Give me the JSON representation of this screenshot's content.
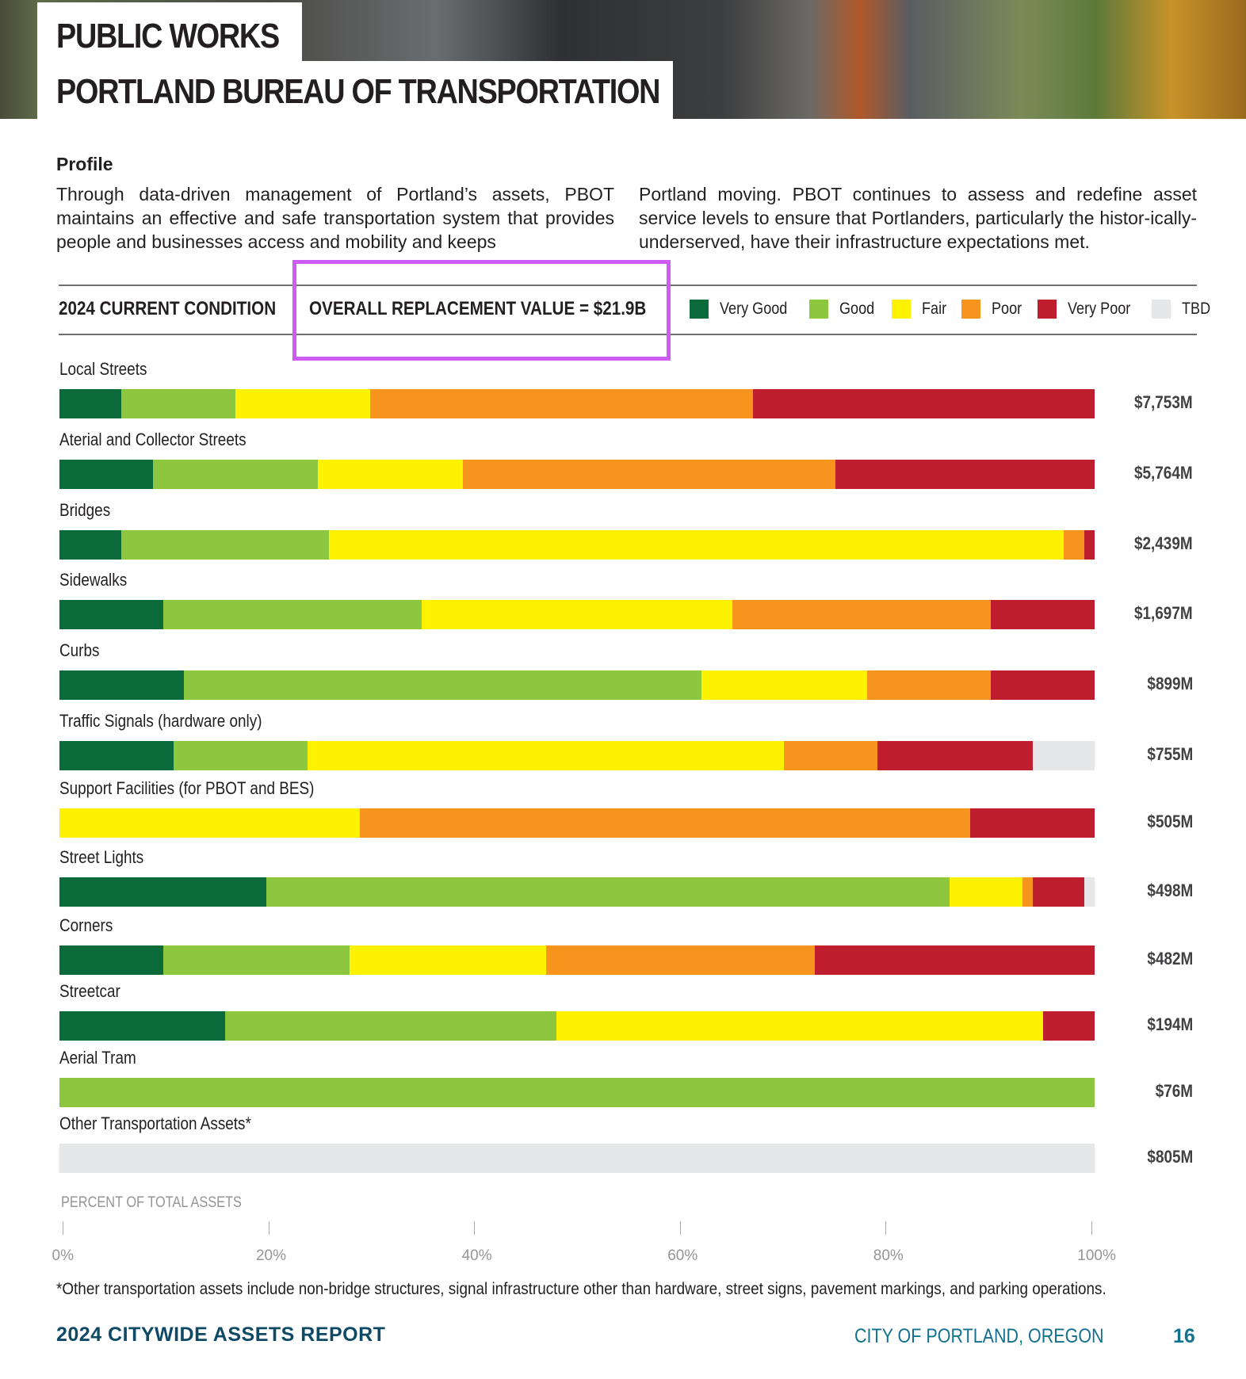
{
  "header": {
    "title1": "PUBLIC WORKS",
    "title2": "PORTLAND BUREAU OF TRANSPORTATION",
    "photo": "road paving crew photo"
  },
  "profile": {
    "heading": "Profile",
    "col1": "Through data-driven management of Portland’s assets, PBOT maintains an effective and safe transportation system that provides people and businesses access and mobility and keeps",
    "col2": "Portland moving. PBOT continues to assess and redefine asset service levels to ensure that Portlanders, particularly the histor-ically-underserved, have their infrastructure expectations met."
  },
  "chart_data": {
    "type": "bar",
    "orientation": "horizontal",
    "stacked": true,
    "title": "2024 CURRENT CONDITION",
    "subtitle": "OVERALL REPLACEMENT VALUE = $21.9B",
    "xlabel": "PERCENT OF TOTAL ASSETS",
    "xlim": [
      0,
      100
    ],
    "xticks": [
      "0%",
      "20%",
      "40%",
      "60%",
      "80%",
      "100%"
    ],
    "legend_placement": "top-right",
    "legend": [
      {
        "name": "Very Good",
        "color": "#0b6b3a"
      },
      {
        "name": "Good",
        "color": "#8dc63f"
      },
      {
        "name": "Fair",
        "color": "#fff200"
      },
      {
        "name": "Poor",
        "color": "#f7941d"
      },
      {
        "name": "Very Poor",
        "color": "#be1e2d"
      },
      {
        "name": "TBD",
        "color": "#e6e7e8"
      }
    ],
    "categories": [
      {
        "name": "Local Streets",
        "value_label": "$7,753M",
        "values": [
          6,
          11,
          13,
          37,
          33,
          0
        ]
      },
      {
        "name": "Aterial and Collector Streets",
        "value_label": "$5,764M",
        "values": [
          9,
          16,
          14,
          36,
          25,
          0
        ]
      },
      {
        "name": "Bridges",
        "value_label": "$2,439M",
        "values": [
          6,
          20,
          71,
          2,
          1,
          0
        ]
      },
      {
        "name": "Sidewalks",
        "value_label": "$1,697M",
        "values": [
          10,
          25,
          30,
          25,
          10,
          0
        ]
      },
      {
        "name": "Curbs",
        "value_label": "$899M",
        "values": [
          12,
          50,
          16,
          12,
          10,
          0
        ]
      },
      {
        "name": "Traffic Signals (hardware only)",
        "value_label": "$755M",
        "values": [
          11,
          13,
          46,
          9,
          15,
          6
        ]
      },
      {
        "name": "Support Facilities (for PBOT and BES)",
        "value_label": "$505M",
        "values": [
          0,
          0,
          29,
          59,
          12,
          0
        ]
      },
      {
        "name": "Street Lights",
        "value_label": "$498M",
        "values": [
          20,
          66,
          7,
          1,
          5,
          1
        ]
      },
      {
        "name": "Corners",
        "value_label": "$482M",
        "values": [
          10,
          18,
          19,
          26,
          27,
          0
        ]
      },
      {
        "name": "Streetcar",
        "value_label": "$194M",
        "values": [
          16,
          32,
          47,
          0,
          5,
          0
        ]
      },
      {
        "name": "Aerial Tram",
        "value_label": "$76M",
        "values": [
          0,
          100,
          0,
          0,
          0,
          0
        ]
      },
      {
        "name": "Other Transportation Assets*",
        "value_label": "$805M",
        "values": [
          0,
          0,
          0,
          0,
          0,
          100
        ]
      }
    ],
    "footnote": "*Other transportation assets include non-bridge structures, signal infrastructure other than hardware, street signs, pavement markings, and parking operations."
  },
  "footer": {
    "report": "2024 CITYWIDE ASSETS REPORT",
    "city": "CITY OF PORTLAND, OREGON",
    "page": "16"
  }
}
